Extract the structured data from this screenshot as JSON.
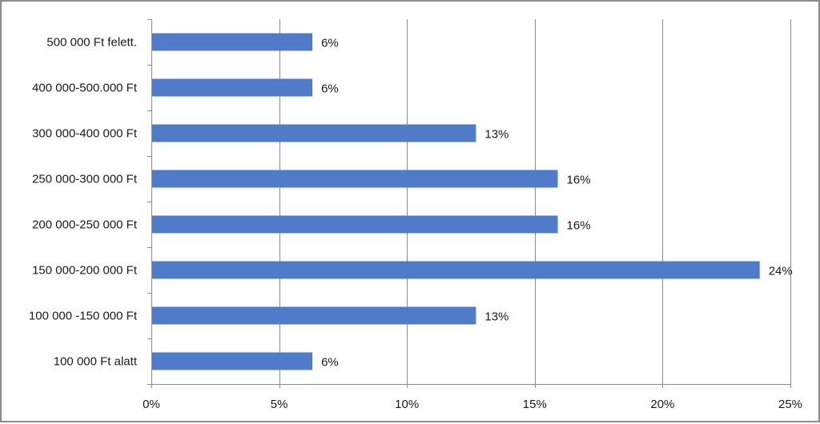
{
  "chart_data": {
    "type": "bar",
    "orientation": "horizontal",
    "categories": [
      "500 000 Ft felett.",
      "400 000-500.000 Ft",
      "300 000-400 000 Ft",
      "250 000-300 000 Ft",
      "200 000-250 000 Ft",
      "150 000-200 000 Ft",
      "100 000 -150 000 Ft",
      "100 000 Ft alatt"
    ],
    "values": [
      6.3,
      6.3,
      12.7,
      15.9,
      15.9,
      23.8,
      12.7,
      6.3
    ],
    "data_labels": [
      "6%",
      "6%",
      "13%",
      "16%",
      "16%",
      "24%",
      "13%",
      "6%"
    ],
    "x_ticks": [
      0,
      5,
      10,
      15,
      20,
      25
    ],
    "x_tick_labels": [
      "0%",
      "5%",
      "10%",
      "15%",
      "20%",
      "25%"
    ],
    "xlim": [
      0,
      25
    ],
    "grid": "vertical",
    "bar_color": "#4f7bc8",
    "grid_color": "#8c8c8c"
  }
}
